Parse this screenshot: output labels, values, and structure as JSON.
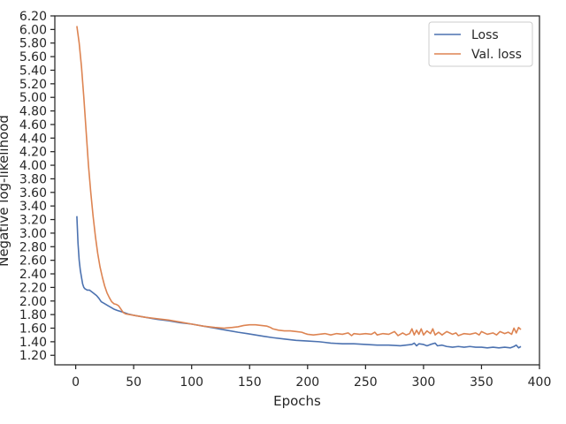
{
  "chart_data": {
    "type": "line",
    "xlabel": "Epochs",
    "ylabel": "Negative log-likelihood",
    "xlim": [
      -18,
      400
    ],
    "ylim": [
      1.06,
      6.2
    ],
    "grid": false,
    "legend_position": "top-right",
    "x_ticks": [
      0,
      50,
      100,
      150,
      200,
      250,
      300,
      350,
      400
    ],
    "x_tick_labels": [
      "0",
      "50",
      "100",
      "150",
      "200",
      "250",
      "300",
      "350",
      "400"
    ],
    "y_ticks": [
      1.2,
      1.4,
      1.6,
      1.8,
      2.0,
      2.2,
      2.4,
      2.6,
      2.8,
      3.0,
      3.2,
      3.4,
      3.6,
      3.8,
      4.0,
      4.2,
      4.4,
      4.6,
      4.8,
      5.0,
      5.2,
      5.4,
      5.6,
      5.8,
      6.0,
      6.2
    ],
    "y_tick_labels": [
      "1.20",
      "1.40",
      "1.60",
      "1.80",
      "2.00",
      "2.20",
      "2.40",
      "2.60",
      "2.80",
      "3.00",
      "3.20",
      "3.40",
      "3.60",
      "3.80",
      "4.00",
      "4.20",
      "4.40",
      "4.60",
      "4.80",
      "5.00",
      "5.20",
      "5.40",
      "5.60",
      "5.80",
      "6.00",
      "6.20"
    ],
    "series": [
      {
        "name": "Loss",
        "color": "#4c72b0",
        "points": [
          [
            1,
            3.25
          ],
          [
            2,
            2.85
          ],
          [
            3,
            2.6
          ],
          [
            4,
            2.45
          ],
          [
            5,
            2.35
          ],
          [
            6,
            2.25
          ],
          [
            7,
            2.2
          ],
          [
            8,
            2.18
          ],
          [
            10,
            2.16
          ],
          [
            12,
            2.16
          ],
          [
            15,
            2.12
          ],
          [
            18,
            2.08
          ],
          [
            20,
            2.04
          ],
          [
            22,
            1.99
          ],
          [
            25,
            1.96
          ],
          [
            28,
            1.93
          ],
          [
            30,
            1.91
          ],
          [
            33,
            1.88
          ],
          [
            36,
            1.86
          ],
          [
            40,
            1.84
          ],
          [
            45,
            1.81
          ],
          [
            50,
            1.79
          ],
          [
            60,
            1.76
          ],
          [
            70,
            1.73
          ],
          [
            80,
            1.71
          ],
          [
            90,
            1.68
          ],
          [
            100,
            1.66
          ],
          [
            110,
            1.63
          ],
          [
            120,
            1.6
          ],
          [
            130,
            1.57
          ],
          [
            140,
            1.54
          ],
          [
            148,
            1.52
          ],
          [
            155,
            1.5
          ],
          [
            162,
            1.48
          ],
          [
            170,
            1.46
          ],
          [
            180,
            1.44
          ],
          [
            190,
            1.42
          ],
          [
            200,
            1.41
          ],
          [
            210,
            1.4
          ],
          [
            215,
            1.39
          ],
          [
            220,
            1.38
          ],
          [
            230,
            1.37
          ],
          [
            240,
            1.37
          ],
          [
            250,
            1.36
          ],
          [
            260,
            1.35
          ],
          [
            270,
            1.35
          ],
          [
            280,
            1.34
          ],
          [
            285,
            1.35
          ],
          [
            290,
            1.36
          ],
          [
            292,
            1.38
          ],
          [
            294,
            1.34
          ],
          [
            296,
            1.37
          ],
          [
            300,
            1.36
          ],
          [
            303,
            1.34
          ],
          [
            306,
            1.36
          ],
          [
            310,
            1.38
          ],
          [
            312,
            1.34
          ],
          [
            316,
            1.35
          ],
          [
            320,
            1.33
          ],
          [
            325,
            1.32
          ],
          [
            330,
            1.33
          ],
          [
            335,
            1.32
          ],
          [
            340,
            1.33
          ],
          [
            345,
            1.32
          ],
          [
            350,
            1.32
          ],
          [
            355,
            1.31
          ],
          [
            360,
            1.32
          ],
          [
            365,
            1.31
          ],
          [
            370,
            1.32
          ],
          [
            375,
            1.31
          ],
          [
            378,
            1.33
          ],
          [
            380,
            1.35
          ],
          [
            382,
            1.31
          ],
          [
            384,
            1.33
          ]
        ]
      },
      {
        "name": "Val. loss",
        "color": "#dd8452",
        "points": [
          [
            1,
            6.05
          ],
          [
            3,
            5.8
          ],
          [
            5,
            5.45
          ],
          [
            7,
            5.0
          ],
          [
            9,
            4.5
          ],
          [
            11,
            4.0
          ],
          [
            13,
            3.6
          ],
          [
            15,
            3.25
          ],
          [
            17,
            2.95
          ],
          [
            19,
            2.7
          ],
          [
            21,
            2.5
          ],
          [
            23,
            2.35
          ],
          [
            25,
            2.22
          ],
          [
            27,
            2.12
          ],
          [
            29,
            2.05
          ],
          [
            31,
            1.99
          ],
          [
            33,
            1.96
          ],
          [
            35,
            1.95
          ],
          [
            37,
            1.93
          ],
          [
            39,
            1.88
          ],
          [
            41,
            1.83
          ],
          [
            43,
            1.81
          ],
          [
            50,
            1.79
          ],
          [
            60,
            1.76
          ],
          [
            70,
            1.74
          ],
          [
            80,
            1.72
          ],
          [
            90,
            1.69
          ],
          [
            100,
            1.66
          ],
          [
            110,
            1.63
          ],
          [
            120,
            1.61
          ],
          [
            128,
            1.6
          ],
          [
            135,
            1.61
          ],
          [
            140,
            1.62
          ],
          [
            145,
            1.64
          ],
          [
            150,
            1.65
          ],
          [
            155,
            1.65
          ],
          [
            160,
            1.64
          ],
          [
            165,
            1.63
          ],
          [
            168,
            1.61
          ],
          [
            170,
            1.59
          ],
          [
            175,
            1.57
          ],
          [
            180,
            1.56
          ],
          [
            185,
            1.56
          ],
          [
            190,
            1.55
          ],
          [
            195,
            1.54
          ],
          [
            198,
            1.52
          ],
          [
            200,
            1.51
          ],
          [
            205,
            1.5
          ],
          [
            210,
            1.51
          ],
          [
            215,
            1.52
          ],
          [
            220,
            1.5
          ],
          [
            225,
            1.52
          ],
          [
            230,
            1.51
          ],
          [
            235,
            1.53
          ],
          [
            238,
            1.49
          ],
          [
            240,
            1.52
          ],
          [
            245,
            1.51
          ],
          [
            250,
            1.52
          ],
          [
            255,
            1.51
          ],
          [
            258,
            1.54
          ],
          [
            260,
            1.5
          ],
          [
            265,
            1.52
          ],
          [
            270,
            1.51
          ],
          [
            275,
            1.55
          ],
          [
            278,
            1.49
          ],
          [
            282,
            1.53
          ],
          [
            285,
            1.5
          ],
          [
            288,
            1.52
          ],
          [
            290,
            1.59
          ],
          [
            292,
            1.5
          ],
          [
            294,
            1.57
          ],
          [
            296,
            1.51
          ],
          [
            298,
            1.59
          ],
          [
            300,
            1.5
          ],
          [
            303,
            1.56
          ],
          [
            306,
            1.52
          ],
          [
            308,
            1.59
          ],
          [
            310,
            1.5
          ],
          [
            313,
            1.54
          ],
          [
            316,
            1.5
          ],
          [
            320,
            1.55
          ],
          [
            325,
            1.51
          ],
          [
            328,
            1.53
          ],
          [
            330,
            1.49
          ],
          [
            335,
            1.52
          ],
          [
            340,
            1.51
          ],
          [
            345,
            1.53
          ],
          [
            348,
            1.5
          ],
          [
            350,
            1.55
          ],
          [
            355,
            1.51
          ],
          [
            360,
            1.53
          ],
          [
            363,
            1.5
          ],
          [
            366,
            1.55
          ],
          [
            370,
            1.52
          ],
          [
            373,
            1.54
          ],
          [
            376,
            1.51
          ],
          [
            378,
            1.6
          ],
          [
            380,
            1.53
          ],
          [
            382,
            1.61
          ],
          [
            384,
            1.58
          ]
        ]
      }
    ]
  }
}
